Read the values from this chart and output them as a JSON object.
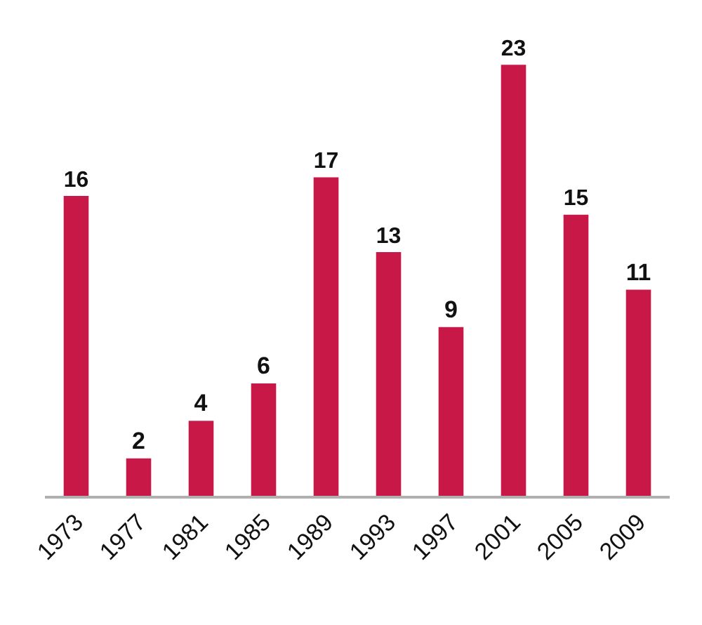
{
  "chart_data": {
    "type": "bar",
    "categories": [
      "1973",
      "1977",
      "1981",
      "1985",
      "1989",
      "1993",
      "1997",
      "2001",
      "2005",
      "2009"
    ],
    "values": [
      16,
      2,
      4,
      6,
      17,
      13,
      9,
      23,
      15,
      11
    ],
    "color": "#c81848",
    "data_labels": true
  }
}
